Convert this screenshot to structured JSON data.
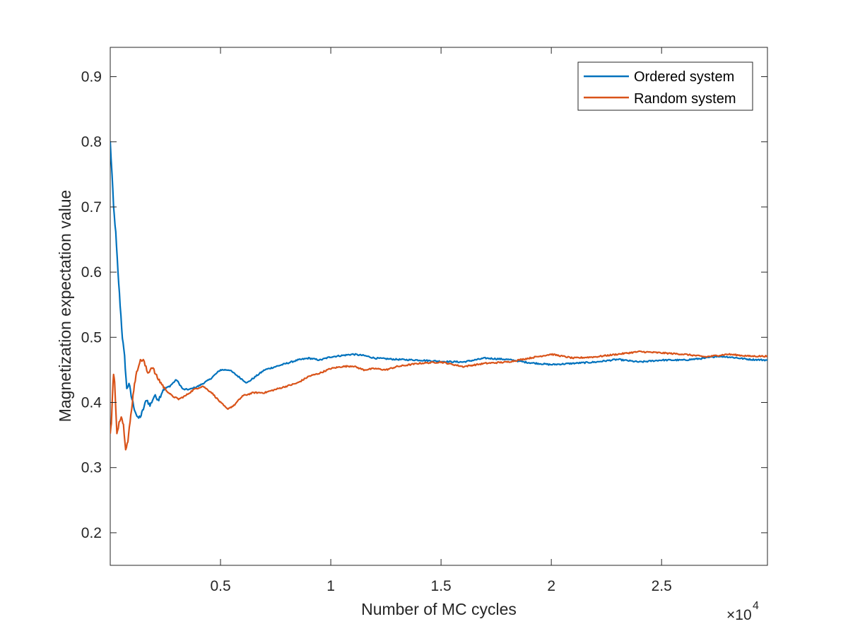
{
  "chart_data": {
    "type": "line",
    "title": "",
    "xlabel": "Number of MC cycles",
    "ylabel": "Magnetization expectation value",
    "x_exponent_label": "×10",
    "x_exponent_power": "4",
    "xlim": [
      0,
      29800
    ],
    "ylim": [
      0.15,
      0.945
    ],
    "x_ticks": [
      5000,
      10000,
      15000,
      20000,
      25000
    ],
    "x_tick_labels": [
      "0.5",
      "1",
      "1.5",
      "2",
      "2.5"
    ],
    "y_ticks": [
      0.2,
      0.3,
      0.4,
      0.5,
      0.6,
      0.7,
      0.8,
      0.9
    ],
    "y_tick_labels": [
      "0.2",
      "0.3",
      "0.4",
      "0.5",
      "0.6",
      "0.7",
      "0.8",
      "0.9"
    ],
    "grid": false,
    "legend_position": "top-right",
    "series": [
      {
        "name": "Ordered system",
        "color": "#0072BD",
        "x": [
          0,
          80,
          150,
          250,
          350,
          450,
          550,
          650,
          750,
          850,
          950,
          1100,
          1250,
          1400,
          1500,
          1650,
          1800,
          2000,
          2200,
          2400,
          2700,
          3000,
          3300,
          3600,
          4000,
          4500,
          5000,
          5400,
          5800,
          6200,
          6600,
          7000,
          7500,
          8000,
          8500,
          9000,
          9500,
          10000,
          10500,
          11000,
          11500,
          12000,
          13000,
          14000,
          15000,
          16000,
          16500,
          17000,
          18000,
          19000,
          20000,
          21000,
          22000,
          23000,
          24000,
          25000,
          26000,
          27000,
          27500,
          28000,
          29000,
          29800
        ],
        "y": [
          0.8,
          0.75,
          0.7,
          0.66,
          0.6,
          0.55,
          0.5,
          0.47,
          0.42,
          0.43,
          0.41,
          0.39,
          0.375,
          0.38,
          0.39,
          0.405,
          0.395,
          0.41,
          0.405,
          0.42,
          0.425,
          0.435,
          0.42,
          0.42,
          0.425,
          0.435,
          0.45,
          0.45,
          0.44,
          0.43,
          0.44,
          0.45,
          0.455,
          0.46,
          0.465,
          0.468,
          0.465,
          0.47,
          0.472,
          0.474,
          0.472,
          0.468,
          0.466,
          0.465,
          0.463,
          0.462,
          0.465,
          0.468,
          0.466,
          0.461,
          0.458,
          0.46,
          0.462,
          0.466,
          0.462,
          0.465,
          0.465,
          0.468,
          0.471,
          0.47,
          0.466,
          0.465
        ]
      },
      {
        "name": "Random system",
        "color": "#D95319",
        "x": [
          0,
          50,
          100,
          150,
          200,
          250,
          300,
          400,
          500,
          600,
          700,
          800,
          900,
          1000,
          1100,
          1200,
          1300,
          1400,
          1500,
          1700,
          1900,
          2100,
          2300,
          2500,
          2800,
          3100,
          3400,
          3800,
          4200,
          4600,
          5000,
          5300,
          5600,
          6000,
          6500,
          7000,
          7500,
          8000,
          8500,
          9000,
          9500,
          10000,
          10500,
          11000,
          11500,
          12000,
          12500,
          13000,
          14000,
          15000,
          16000,
          17000,
          18000,
          19000,
          20000,
          21000,
          22000,
          23000,
          24000,
          25000,
          26000,
          27000,
          28000,
          29000,
          29800
        ],
        "y": [
          0.35,
          0.37,
          0.41,
          0.445,
          0.43,
          0.39,
          0.35,
          0.37,
          0.38,
          0.365,
          0.33,
          0.34,
          0.37,
          0.4,
          0.43,
          0.445,
          0.46,
          0.465,
          0.465,
          0.445,
          0.455,
          0.44,
          0.43,
          0.42,
          0.41,
          0.405,
          0.41,
          0.42,
          0.425,
          0.415,
          0.4,
          0.39,
          0.395,
          0.41,
          0.415,
          0.415,
          0.42,
          0.425,
          0.43,
          0.44,
          0.445,
          0.452,
          0.455,
          0.456,
          0.45,
          0.452,
          0.45,
          0.455,
          0.46,
          0.462,
          0.455,
          0.46,
          0.462,
          0.468,
          0.474,
          0.468,
          0.47,
          0.474,
          0.478,
          0.476,
          0.474,
          0.47,
          0.474,
          0.471,
          0.471
        ]
      }
    ]
  }
}
